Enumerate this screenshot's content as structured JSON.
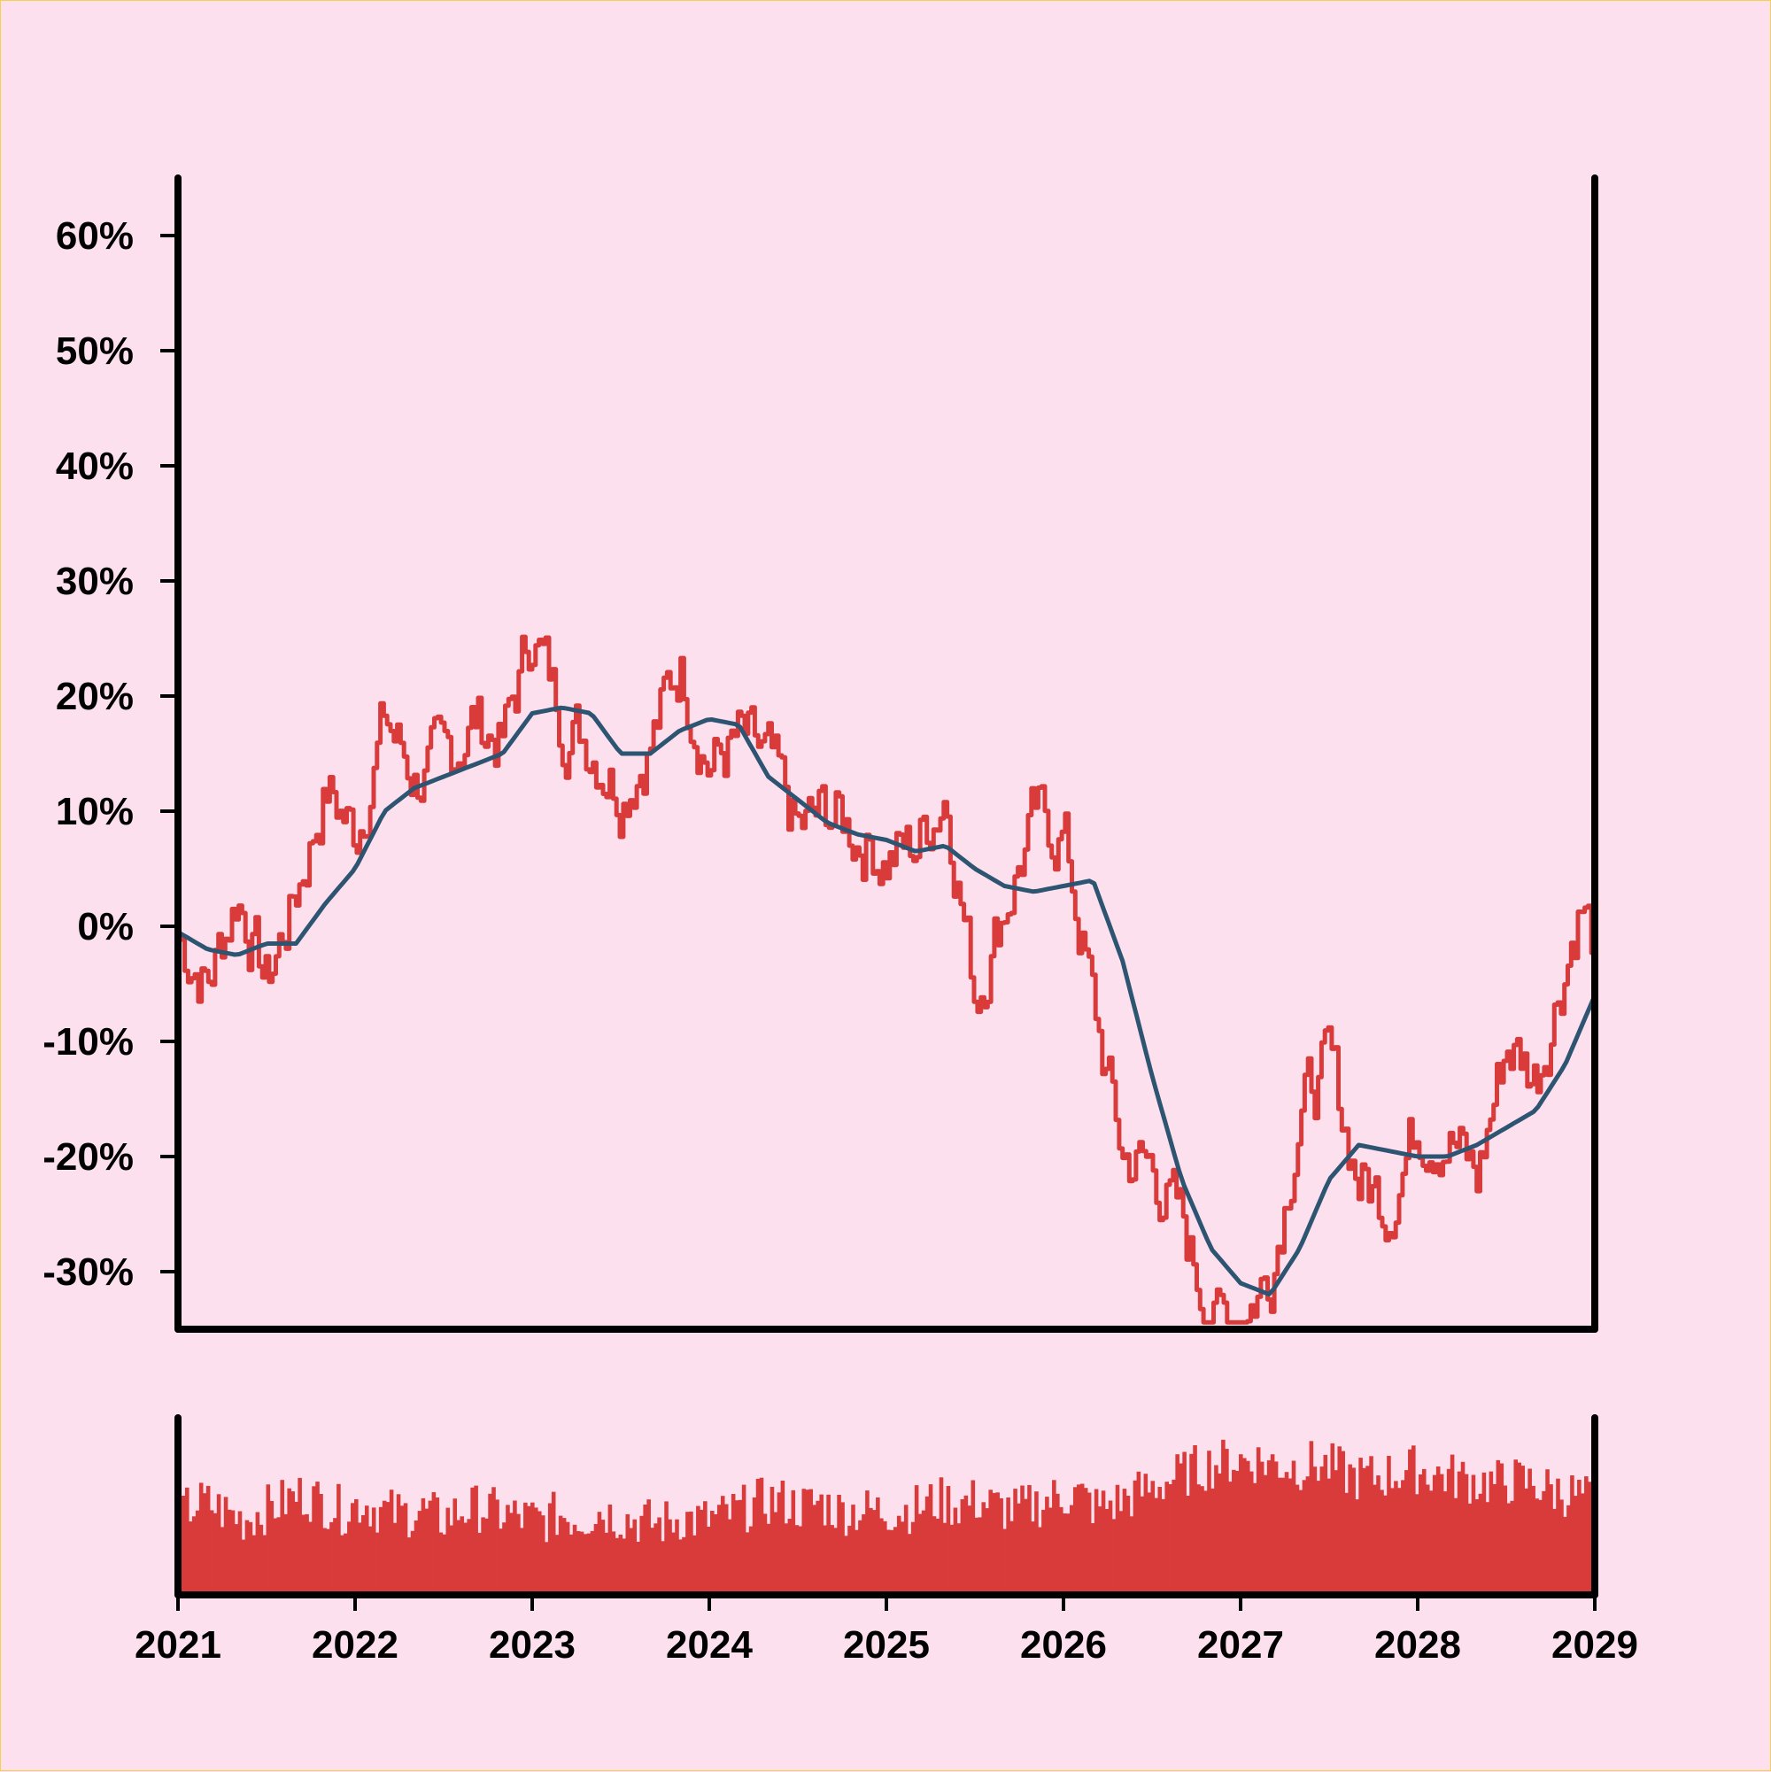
{
  "colors": {
    "background": "#fde0ee",
    "price_line": "#d93a3a",
    "moving_average": "#2d5572",
    "volume_bars": "#d93a3a",
    "axis": "#000000"
  },
  "chart_data": {
    "type": "line",
    "x_axis": {
      "range": [
        "2021-01",
        "2029-01"
      ],
      "tick_labels": [
        "2021",
        "2022",
        "2023",
        "2024",
        "2025",
        "2026",
        "2027",
        "2028",
        "2029"
      ]
    },
    "y_axis": {
      "range": [
        -35,
        65
      ],
      "ticks": [
        -30,
        -20,
        -10,
        0,
        10,
        20,
        30,
        40,
        50,
        60
      ],
      "tick_labels": [
        "-30%",
        "-20%",
        "-10%",
        "0%",
        "10%",
        "20%",
        "30%",
        "40%",
        "50%",
        "60%"
      ]
    },
    "grid": false,
    "series": [
      {
        "role": "price",
        "style": "jagged line",
        "points": [
          [
            "2021-01",
            -1
          ],
          [
            "2021-03",
            -5
          ],
          [
            "2021-05",
            3
          ],
          [
            "2021-07",
            -5
          ],
          [
            "2021-09",
            3
          ],
          [
            "2021-11",
            12
          ],
          [
            "2022-01",
            8
          ],
          [
            "2022-03",
            18
          ],
          [
            "2022-05",
            13
          ],
          [
            "2022-07",
            14
          ],
          [
            "2022-09",
            18
          ],
          [
            "2022-11",
            16
          ],
          [
            "2023-01",
            26
          ],
          [
            "2023-03",
            18
          ],
          [
            "2023-05",
            16
          ],
          [
            "2023-07",
            12
          ],
          [
            "2023-09",
            16
          ],
          [
            "2023-11",
            23
          ],
          [
            "2024-01",
            14
          ],
          [
            "2024-03",
            16
          ],
          [
            "2024-05",
            14
          ],
          [
            "2024-07",
            8
          ],
          [
            "2024-09",
            10
          ],
          [
            "2024-11",
            8
          ],
          [
            "2025-01",
            6
          ],
          [
            "2025-03",
            7
          ],
          [
            "2025-05",
            12
          ],
          [
            "2025-07",
            -6
          ],
          [
            "2025-09",
            2
          ],
          [
            "2025-11",
            9
          ],
          [
            "2026-01",
            8
          ],
          [
            "2026-03",
            -7
          ],
          [
            "2026-05",
            -20
          ],
          [
            "2026-07",
            -21
          ],
          [
            "2026-09",
            -26
          ],
          [
            "2026-11",
            -34
          ],
          [
            "2027-01",
            -34
          ],
          [
            "2027-03",
            -30
          ],
          [
            "2027-05",
            -16
          ],
          [
            "2027-07",
            -12
          ],
          [
            "2027-09",
            -22
          ],
          [
            "2027-11",
            -24
          ],
          [
            "2028-01",
            -17
          ],
          [
            "2028-03",
            -18
          ],
          [
            "2028-05",
            -22
          ],
          [
            "2028-07",
            -10
          ],
          [
            "2028-09",
            -13
          ],
          [
            "2028-11",
            -3
          ],
          [
            "2028-12",
            2
          ],
          [
            "2029-01",
            -2
          ]
        ]
      },
      {
        "role": "moving-average",
        "style": "smooth line",
        "points": [
          [
            "2021-01",
            -0.5
          ],
          [
            "2021-03",
            -2
          ],
          [
            "2021-05",
            -2.5
          ],
          [
            "2021-07",
            -1.5
          ],
          [
            "2021-09",
            -1.5
          ],
          [
            "2021-11",
            2
          ],
          [
            "2022-01",
            5
          ],
          [
            "2022-03",
            10
          ],
          [
            "2022-05",
            12
          ],
          [
            "2022-07",
            13
          ],
          [
            "2022-09",
            14
          ],
          [
            "2022-11",
            15
          ],
          [
            "2023-01",
            18.5
          ],
          [
            "2023-03",
            19
          ],
          [
            "2023-05",
            18.5
          ],
          [
            "2023-07",
            15
          ],
          [
            "2023-09",
            15
          ],
          [
            "2023-11",
            17
          ],
          [
            "2024-01",
            18
          ],
          [
            "2024-03",
            17.5
          ],
          [
            "2024-05",
            13
          ],
          [
            "2024-07",
            11
          ],
          [
            "2024-09",
            9
          ],
          [
            "2024-11",
            8
          ],
          [
            "2025-01",
            7.5
          ],
          [
            "2025-03",
            6.5
          ],
          [
            "2025-05",
            7
          ],
          [
            "2025-07",
            5
          ],
          [
            "2025-09",
            3.5
          ],
          [
            "2025-11",
            3
          ],
          [
            "2026-01",
            3.5
          ],
          [
            "2026-03",
            4
          ],
          [
            "2026-05",
            -3
          ],
          [
            "2026-07",
            -13
          ],
          [
            "2026-09",
            -22
          ],
          [
            "2026-11",
            -28
          ],
          [
            "2027-01",
            -31
          ],
          [
            "2027-03",
            -32
          ],
          [
            "2027-05",
            -28
          ],
          [
            "2027-07",
            -22
          ],
          [
            "2027-09",
            -19
          ],
          [
            "2027-11",
            -19.5
          ],
          [
            "2028-01",
            -20
          ],
          [
            "2028-03",
            -20
          ],
          [
            "2028-05",
            -19
          ],
          [
            "2028-07",
            -17.5
          ],
          [
            "2028-09",
            -16
          ],
          [
            "2028-11",
            -12
          ],
          [
            "2028-12",
            -9
          ],
          [
            "2029-01",
            -6
          ]
        ]
      }
    ],
    "volume": {
      "type": "bar",
      "values_relative": [
        0.5,
        0.55,
        0.5,
        0.45,
        0.5,
        0.55,
        0.6,
        0.55,
        0.5,
        0.55,
        0.5,
        0.48,
        0.5,
        0.45,
        0.5,
        0.52,
        0.48,
        0.46,
        0.44,
        0.48,
        0.45,
        0.5,
        0.46,
        0.44,
        0.42,
        0.46,
        0.44,
        0.46,
        0.5,
        0.55,
        0.56,
        0.52,
        0.55,
        0.5,
        0.5,
        0.5,
        0.5,
        0.52,
        0.56,
        0.54,
        0.56,
        0.52,
        0.5,
        0.54,
        0.58,
        0.6,
        0.52,
        0.55,
        0.6,
        0.65,
        0.7,
        0.75,
        0.78,
        0.8,
        0.8,
        0.78,
        0.76,
        0.78,
        0.75,
        0.7,
        0.7,
        0.72,
        0.75,
        0.72,
        0.7,
        0.68,
        0.66,
        0.68,
        0.66,
        0.62,
        0.6,
        0.56
      ]
    }
  }
}
